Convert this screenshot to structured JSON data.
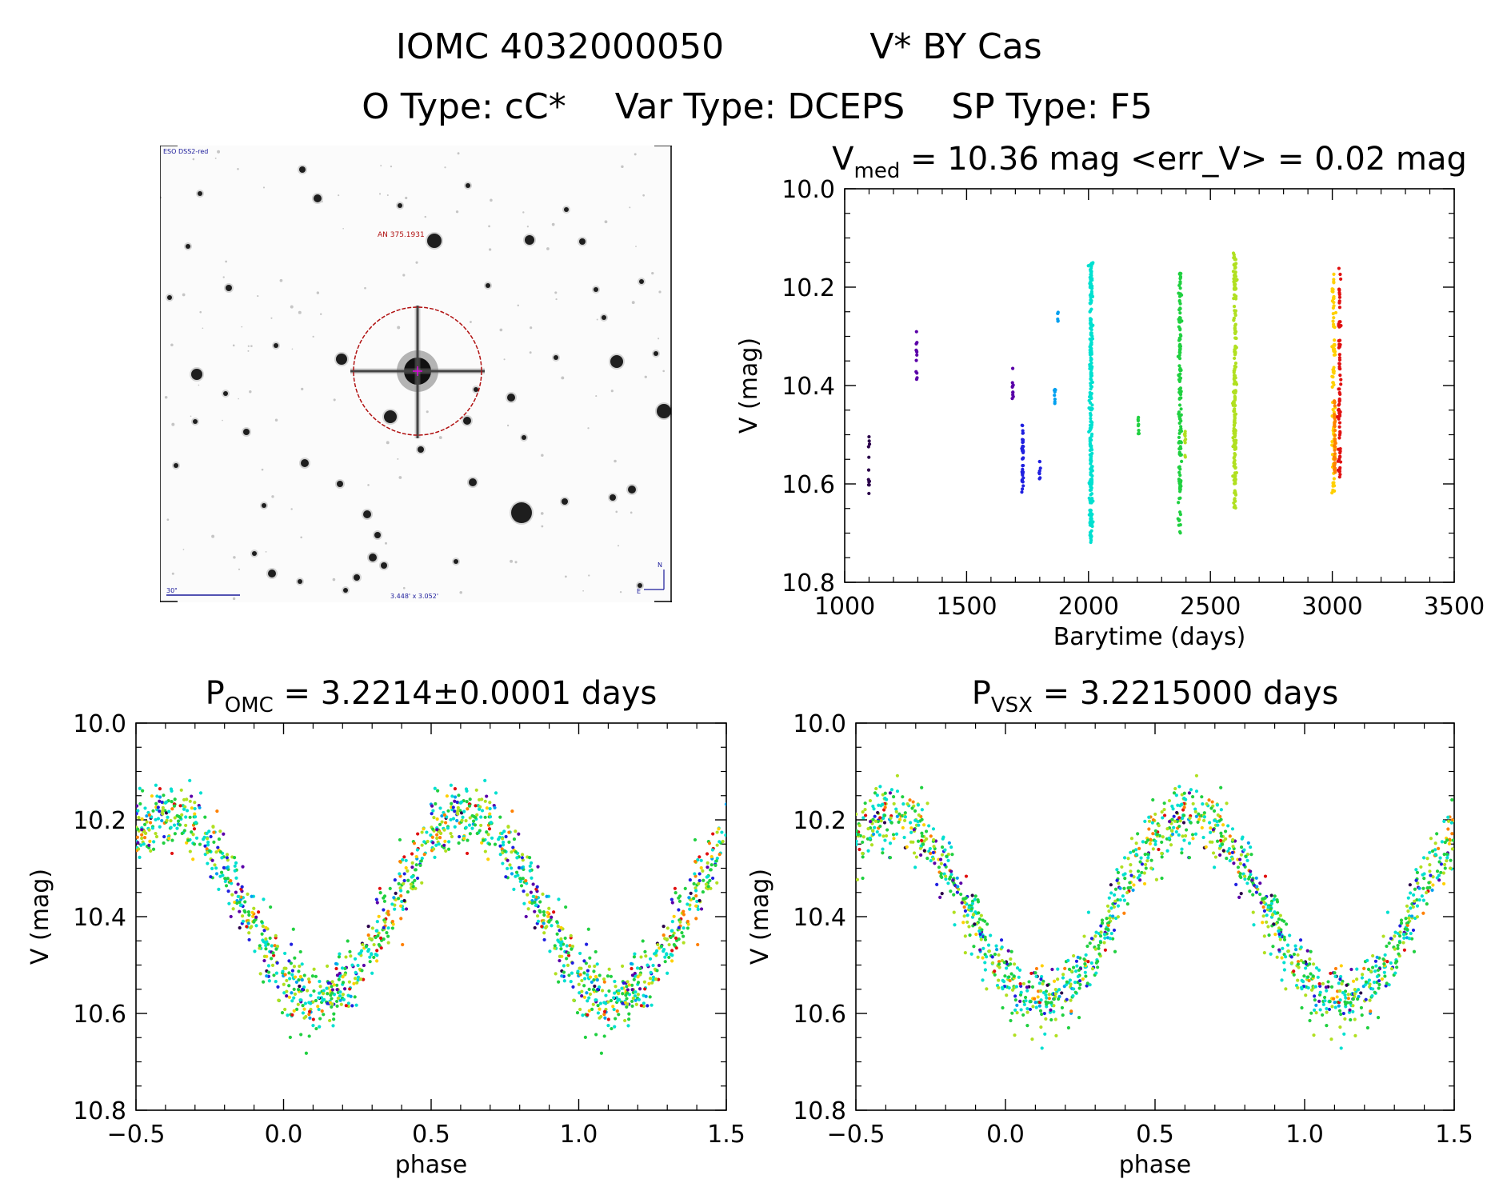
{
  "title": {
    "line1_id": "IOMC 4032000050",
    "line1_name": "V* BY Cas",
    "line2_otype": "O Type: cC*",
    "line2_vartype": "Var Type: DCEPS",
    "line2_sptype": "SP Type: F5"
  },
  "finder": {
    "survey_label": "ESO DSS2-red",
    "target_label": "AN 375.1931",
    "scale_label": "30\"",
    "fov_label": "3.448' x 3.052'",
    "north_label": "N",
    "east_label": "E"
  },
  "colors": {
    "circle": "#b01010",
    "palette": [
      "#2a004a",
      "#5a00a8",
      "#2020e0",
      "#00a0f0",
      "#00e0d0",
      "#20d040",
      "#b0e020",
      "#ffd000",
      "#ff8000",
      "#e01010"
    ]
  },
  "chart_data": [
    {
      "name": "lightcurve",
      "type": "scatter",
      "title_prefix": "V",
      "title_sub": "med",
      "title_rest": " = 10.36 mag <err_V> = 0.02 mag",
      "xlabel": "Barytime (days)",
      "ylabel": "V (mag)",
      "xlim": [
        1000,
        3500
      ],
      "ylim": [
        10.8,
        10.0
      ],
      "xticks": [
        "1000",
        "1500",
        "2000",
        "2500",
        "3000",
        "3500"
      ],
      "yticks": [
        "10.0",
        "10.2",
        "10.4",
        "10.6",
        "10.8"
      ],
      "series": [
        {
          "t": 1100,
          "vmin": 10.48,
          "vmax": 10.62,
          "n": 12,
          "color": 0
        },
        {
          "t": 1295,
          "vmin": 10.29,
          "vmax": 10.39,
          "n": 12,
          "color": 1
        },
        {
          "t": 1690,
          "vmin": 10.35,
          "vmax": 10.43,
          "n": 10,
          "color": 1
        },
        {
          "t": 1730,
          "vmin": 10.48,
          "vmax": 10.62,
          "n": 40,
          "color": 2
        },
        {
          "t": 1800,
          "vmin": 10.54,
          "vmax": 10.59,
          "n": 8,
          "color": 2
        },
        {
          "t": 1862,
          "vmin": 10.4,
          "vmax": 10.44,
          "n": 8,
          "color": 3
        },
        {
          "t": 1875,
          "vmin": 10.25,
          "vmax": 10.28,
          "n": 6,
          "color": 3
        },
        {
          "t": 2010,
          "vmin": 10.15,
          "vmax": 10.72,
          "n": 260,
          "color": 4
        },
        {
          "t": 2205,
          "vmin": 10.46,
          "vmax": 10.5,
          "n": 8,
          "color": 5
        },
        {
          "t": 2375,
          "vmin": 10.17,
          "vmax": 10.7,
          "n": 140,
          "color": 5
        },
        {
          "t": 2395,
          "vmin": 10.49,
          "vmax": 10.55,
          "n": 10,
          "color": 6
        },
        {
          "t": 2600,
          "vmin": 10.13,
          "vmax": 10.65,
          "n": 200,
          "color": 6
        },
        {
          "t": 3005,
          "vmin": 10.17,
          "vmax": 10.62,
          "n": 90,
          "color": 7
        },
        {
          "t": 3010,
          "vmin": 10.42,
          "vmax": 10.58,
          "n": 40,
          "color": 8
        },
        {
          "t": 3030,
          "vmin": 10.16,
          "vmax": 10.59,
          "n": 80,
          "color": 9
        }
      ]
    },
    {
      "name": "phase-omc",
      "type": "scatter",
      "title_prefix": "P",
      "title_sub": "OMC",
      "title_rest": " = 3.2214±0.0001 days",
      "xlabel": "phase",
      "ylabel": "V (mag)",
      "xlim": [
        -0.5,
        1.5
      ],
      "ylim": [
        10.8,
        10.0
      ],
      "xticks": [
        "−0.5",
        "0.0",
        "0.5",
        "1.0",
        "1.5"
      ],
      "yticks": [
        "10.0",
        "10.2",
        "10.4",
        "10.6",
        "10.8"
      ],
      "model": {
        "mean": 10.38,
        "amplitude": 0.19,
        "max_phase": 0.62,
        "scatter": 0.035
      }
    },
    {
      "name": "phase-vsx",
      "type": "scatter",
      "title_prefix": "P",
      "title_sub": "VSX",
      "title_rest": " = 3.2215000 days",
      "xlabel": "phase",
      "ylabel": "V (mag)",
      "xlim": [
        -0.5,
        1.5
      ],
      "ylim": [
        10.8,
        10.0
      ],
      "xticks": [
        "−0.5",
        "0.0",
        "0.5",
        "1.0",
        "1.5"
      ],
      "yticks": [
        "10.0",
        "10.2",
        "10.4",
        "10.6",
        "10.8"
      ],
      "model": {
        "mean": 10.38,
        "amplitude": 0.19,
        "max_phase": 0.62,
        "scatter": 0.035
      }
    }
  ]
}
